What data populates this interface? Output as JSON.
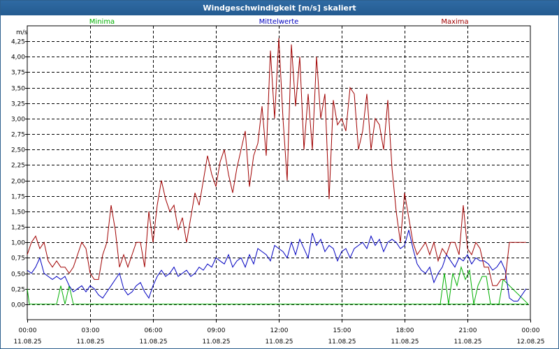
{
  "window": {
    "title": "Windgeschwindigkeit [m/s] skaliert"
  },
  "chart_data": {
    "type": "line",
    "title": "Windgeschwindigkeit [m/s] skaliert",
    "ylabel": "m/s",
    "xlabel": "",
    "ylim": [
      -0.25,
      4.5
    ],
    "xlim": [
      0,
      24
    ],
    "grid": true,
    "legend_position": "top",
    "yticks": [
      0,
      0.25,
      0.5,
      0.75,
      1.0,
      1.25,
      1.5,
      1.75,
      2.0,
      2.25,
      2.5,
      2.75,
      3.0,
      3.25,
      3.5,
      3.75,
      4.0,
      4.25
    ],
    "ytick_labels": [
      "0,00",
      "0,25",
      "0,50",
      "0,75",
      "1,00",
      "1,25",
      "1,50",
      "1,75",
      "2,00",
      "2,25",
      "2,50",
      "2,75",
      "3,00",
      "3,25",
      "3,50",
      "3,75",
      "4,00",
      "4,25"
    ],
    "xticks": [
      {
        "hours": 0,
        "time": "00:00",
        "date": "11.08.25"
      },
      {
        "hours": 3,
        "time": "03:00",
        "date": "11.08.25"
      },
      {
        "hours": 6,
        "time": "06:00",
        "date": "11.08.25"
      },
      {
        "hours": 9,
        "time": "09:00",
        "date": "11.08.25"
      },
      {
        "hours": 12,
        "time": "12:00",
        "date": "11.08.25"
      },
      {
        "hours": 15,
        "time": "15:00",
        "date": "11.08.25"
      },
      {
        "hours": 18,
        "time": "18:00",
        "date": "11.08.25"
      },
      {
        "hours": 21,
        "time": "21:00",
        "date": "11.08.25"
      },
      {
        "hours": 24,
        "time": "00:00",
        "date": "12.08.25"
      }
    ],
    "series": [
      {
        "name": "Minima",
        "color": "#00b000",
        "x": [
          0,
          0.1,
          1.4,
          1.6,
          1.8,
          2.0,
          2.2,
          23.9
        ],
        "y": [
          0.25,
          0,
          0,
          0.3,
          0,
          0.3,
          0,
          0
        ],
        "extra": {
          "x": [
            19.5,
            19.7,
            19.9,
            20.1,
            20.3,
            20.5,
            20.7,
            20.9,
            21.1,
            21.3,
            21.5,
            21.7,
            21.9,
            22.1,
            22.3,
            22.5,
            22.7,
            23.9
          ],
          "y": [
            0,
            0,
            0.5,
            0,
            0.5,
            0.3,
            0.6,
            0.4,
            0.55,
            0,
            0.3,
            0.45,
            0.45,
            0,
            0,
            0,
            0.4,
            0
          ]
        }
      },
      {
        "name": "Mittelwerte",
        "color": "#0000c0",
        "x": [
          0,
          0.2,
          0.4,
          0.6,
          0.8,
          1.0,
          1.2,
          1.4,
          1.6,
          1.8,
          2.0,
          2.2,
          2.4,
          2.6,
          2.8,
          3.0,
          3.2,
          3.4,
          3.6,
          3.8,
          4.0,
          4.2,
          4.4,
          4.6,
          4.8,
          5.0,
          5.2,
          5.4,
          5.6,
          5.8,
          6.0,
          6.2,
          6.4,
          6.6,
          6.8,
          7.0,
          7.2,
          7.4,
          7.6,
          7.8,
          8.0,
          8.2,
          8.4,
          8.6,
          8.8,
          9.0,
          9.2,
          9.4,
          9.6,
          9.8,
          10.0,
          10.2,
          10.4,
          10.6,
          10.8,
          11.0,
          11.2,
          11.4,
          11.6,
          11.8,
          12.0,
          12.2,
          12.4,
          12.6,
          12.8,
          13.0,
          13.2,
          13.4,
          13.6,
          13.8,
          14.0,
          14.2,
          14.4,
          14.6,
          14.8,
          15.0,
          15.2,
          15.4,
          15.6,
          15.8,
          16.0,
          16.2,
          16.4,
          16.6,
          16.8,
          17.0,
          17.2,
          17.4,
          17.6,
          17.8,
          18.0,
          18.2,
          18.4,
          18.6,
          18.8,
          19.0,
          19.2,
          19.4,
          19.6,
          19.8,
          20.0,
          20.2,
          20.4,
          20.6,
          20.8,
          21.0,
          21.2,
          21.4,
          21.6,
          21.8,
          22.0,
          22.2,
          22.4,
          22.6,
          22.8,
          23.0,
          23.2,
          23.4,
          23.6,
          23.8
        ],
        "y": [
          0.55,
          0.5,
          0.6,
          0.75,
          0.5,
          0.45,
          0.4,
          0.45,
          0.4,
          0.45,
          0.3,
          0.2,
          0.25,
          0.3,
          0.2,
          0.3,
          0.25,
          0.15,
          0.1,
          0.2,
          0.3,
          0.4,
          0.5,
          0.25,
          0.15,
          0.2,
          0.3,
          0.35,
          0.2,
          0.1,
          0.3,
          0.45,
          0.55,
          0.45,
          0.5,
          0.6,
          0.45,
          0.5,
          0.55,
          0.45,
          0.5,
          0.6,
          0.55,
          0.65,
          0.6,
          0.75,
          0.7,
          0.65,
          0.8,
          0.6,
          0.7,
          0.75,
          0.6,
          0.8,
          0.65,
          0.9,
          0.85,
          0.8,
          0.7,
          0.95,
          0.9,
          0.85,
          0.75,
          1.0,
          0.8,
          1.05,
          0.9,
          0.75,
          1.15,
          0.95,
          1.05,
          0.85,
          0.95,
          0.9,
          0.7,
          0.85,
          0.9,
          0.75,
          0.9,
          0.95,
          1.0,
          0.9,
          1.1,
          0.95,
          1.05,
          0.85,
          1.0,
          1.05,
          1.0,
          0.9,
          0.95,
          1.2,
          0.9,
          0.65,
          0.55,
          0.5,
          0.6,
          0.35,
          0.5,
          0.6,
          0.8,
          0.7,
          0.6,
          0.75,
          0.7,
          0.8,
          0.65,
          0.75,
          0.7,
          0.7,
          0.65,
          0.55,
          0.6,
          0.7,
          0.55,
          0.1,
          0.05,
          0.05,
          0.15,
          0.25
        ]
      },
      {
        "name": "Maxima",
        "color": "#a00000",
        "x": [
          0,
          0.2,
          0.4,
          0.6,
          0.8,
          1.0,
          1.2,
          1.4,
          1.6,
          1.8,
          2.0,
          2.2,
          2.4,
          2.6,
          2.8,
          3.0,
          3.2,
          3.4,
          3.6,
          3.8,
          4.0,
          4.2,
          4.4,
          4.6,
          4.8,
          5.0,
          5.2,
          5.4,
          5.6,
          5.8,
          6.0,
          6.2,
          6.4,
          6.6,
          6.8,
          7.0,
          7.2,
          7.4,
          7.6,
          7.8,
          8.0,
          8.2,
          8.4,
          8.6,
          8.8,
          9.0,
          9.2,
          9.4,
          9.6,
          9.8,
          10.0,
          10.2,
          10.4,
          10.6,
          10.8,
          11.0,
          11.2,
          11.4,
          11.6,
          11.8,
          12.0,
          12.2,
          12.4,
          12.6,
          12.8,
          13.0,
          13.2,
          13.4,
          13.6,
          13.8,
          14.0,
          14.2,
          14.4,
          14.6,
          14.8,
          15.0,
          15.2,
          15.4,
          15.6,
          15.8,
          16.0,
          16.2,
          16.4,
          16.6,
          16.8,
          17.0,
          17.2,
          17.4,
          17.6,
          17.8,
          18.0,
          18.2,
          18.4,
          18.6,
          18.8,
          19.0,
          19.2,
          19.4,
          19.6,
          19.8,
          20.0,
          20.2,
          20.4,
          20.6,
          20.8,
          21.0,
          21.2,
          21.4,
          21.6,
          21.8,
          22.0,
          22.2,
          22.4,
          22.6,
          22.8,
          23.0,
          23.2,
          23.4,
          23.6,
          23.8
        ],
        "y": [
          0.8,
          1.0,
          1.1,
          0.9,
          1.0,
          0.7,
          0.6,
          0.7,
          0.6,
          0.6,
          0.5,
          0.6,
          0.8,
          1.0,
          0.9,
          0.5,
          0.4,
          0.4,
          0.8,
          1.0,
          1.6,
          1.2,
          0.6,
          0.8,
          0.6,
          0.8,
          1.0,
          1.0,
          0.6,
          1.5,
          1.0,
          1.6,
          2.0,
          1.7,
          1.5,
          1.6,
          1.2,
          1.4,
          1.0,
          1.4,
          1.8,
          1.6,
          2.0,
          2.4,
          2.1,
          1.9,
          2.3,
          2.5,
          2.1,
          1.8,
          2.2,
          2.5,
          2.8,
          1.9,
          2.4,
          2.6,
          3.2,
          2.4,
          4.1,
          3.0,
          4.3,
          3.0,
          2.0,
          4.2,
          3.2,
          4.0,
          2.5,
          3.4,
          2.5,
          4.0,
          3.0,
          3.4,
          1.7,
          3.3,
          2.9,
          3.0,
          2.8,
          3.5,
          3.4,
          2.5,
          2.8,
          3.4,
          2.5,
          3.0,
          2.9,
          2.5,
          3.3,
          2.2,
          1.5,
          1.0,
          1.8,
          1.4,
          1.0,
          0.8,
          0.9,
          1.0,
          0.8,
          1.0,
          0.7,
          0.9,
          0.8,
          1.0,
          1.0,
          0.8,
          1.6,
          0.9,
          0.8,
          1.0,
          0.9,
          0.6,
          0.6,
          0.3,
          0.3,
          0.4,
          0.4,
          1.0,
          1.0,
          1.0,
          1.0,
          1.0
        ]
      }
    ]
  }
}
